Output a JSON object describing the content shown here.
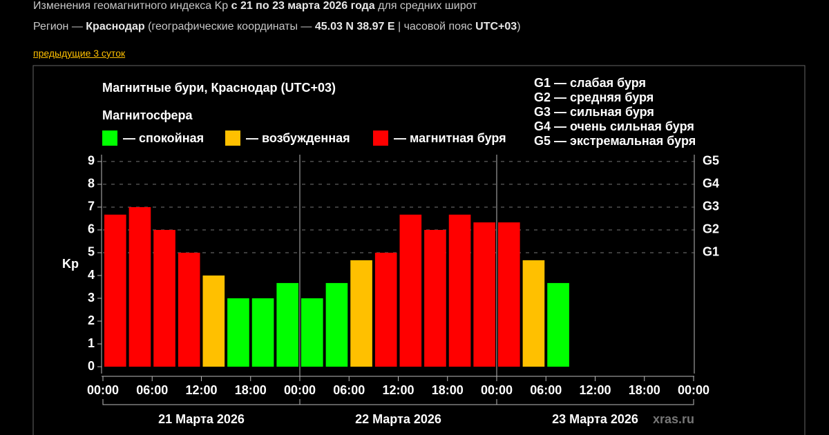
{
  "header": {
    "line1": {
      "a": "Изменения геомагнитного индекса Kp",
      "b": "с 21 по 23 марта 2026 года",
      "c": "для средних широт"
    },
    "line2": {
      "a": "Регион —",
      "b": "Краснодар",
      "c": "(географические координаты —",
      "d": "45.03 N 38.97 E",
      "e": "| часовой пояс",
      "f": "UTC+03",
      "g": ")"
    },
    "link": "предыдущие 3 суток"
  },
  "chart_data": {
    "type": "bar",
    "title": "Магнитные бури, Краснодар (UTC+03)",
    "legend_title": "Магнитосфера",
    "states": [
      {
        "name": "— спокойная",
        "color": "#00ff00"
      },
      {
        "name": "— возбужденная",
        "color": "#ffc000"
      },
      {
        "name": "— магнитная буря",
        "color": "#ff0000"
      }
    ],
    "storm_scale": [
      "G1 — слабая буря",
      "G2 — средняя буря",
      "G3 — сильная буря",
      "G4 — очень сильная буря",
      "G5 — экстремальная буря"
    ],
    "ylabel": "Kp",
    "x": [
      0,
      3,
      6,
      9,
      12,
      15,
      18,
      21,
      24,
      27,
      30,
      33,
      36,
      39,
      42,
      45,
      48,
      51,
      54
    ],
    "values": [
      6.67,
      7,
      6,
      5,
      4,
      3,
      3,
      3.67,
      3,
      3.67,
      4.67,
      5,
      6.67,
      6,
      6.67,
      6.33,
      6.33,
      4.67,
      3.67
    ],
    "colors": [
      "#ff0000",
      "#ff0000",
      "#ff0000",
      "#ff0000",
      "#ffc000",
      "#00ff00",
      "#00ff00",
      "#00ff00",
      "#00ff00",
      "#00ff00",
      "#ffc000",
      "#ff0000",
      "#ff0000",
      "#ff0000",
      "#ff0000",
      "#ff0000",
      "#ff0000",
      "#ffc000",
      "#00ff00"
    ],
    "xlim": [
      0,
      72
    ],
    "xticks": [
      {
        "value": 0,
        "label": "00:00"
      },
      {
        "value": 6,
        "label": "06:00"
      },
      {
        "value": 12,
        "label": "12:00"
      },
      {
        "value": 18,
        "label": "18:00"
      },
      {
        "value": 24,
        "label": "00:00"
      },
      {
        "value": 30,
        "label": "06:00"
      },
      {
        "value": 36,
        "label": "12:00"
      },
      {
        "value": 42,
        "label": "18:00"
      },
      {
        "value": 48,
        "label": "00:00"
      },
      {
        "value": 54,
        "label": "06:00"
      },
      {
        "value": 60,
        "label": "12:00"
      },
      {
        "value": 66,
        "label": "18:00"
      },
      {
        "value": 72,
        "label": "00:00"
      }
    ],
    "ylim": [
      -0.3,
      9.3
    ],
    "yticks": [
      0,
      1,
      2,
      3,
      4,
      5,
      6,
      7,
      8,
      9
    ],
    "y2lim": [
      -0.3,
      9.3
    ],
    "y2ticks": [
      {
        "value": 5,
        "label": "G1"
      },
      {
        "value": 6,
        "label": "G2"
      },
      {
        "value": 7,
        "label": "G3"
      },
      {
        "value": 8,
        "label": "G4"
      },
      {
        "value": 9,
        "label": "G5"
      }
    ],
    "days": [
      "21 Марта 2026",
      "22 Марта 2026",
      "23 Марта 2026"
    ],
    "watermark": "xras.ru"
  }
}
